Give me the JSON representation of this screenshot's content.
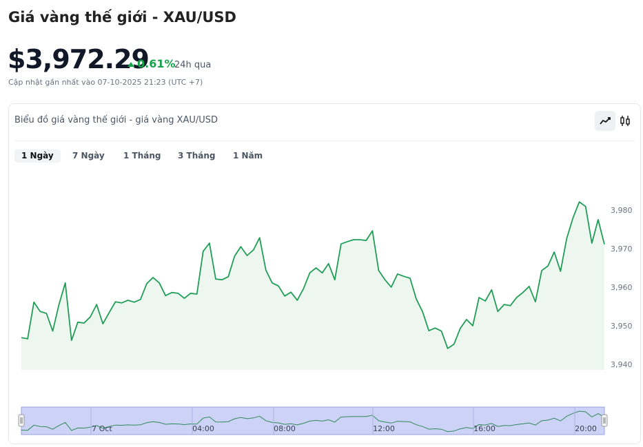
{
  "title": "Giá vàng thế giới - XAU/USD",
  "price": "$3,972.29",
  "change": "0.61%",
  "change_period": "24h qua",
  "updated": "Cập nhật gần nhất vào 07-10-2025 21:23 (UTC +7)",
  "card_title": "Biểu đồ giá vàng thế giới - giá vàng XAU/USD",
  "ranges": [
    "1 Ngày",
    "7 Ngày",
    "1 Tháng",
    "3 Tháng",
    "1 Năm"
  ],
  "chart_data": {
    "type": "area",
    "color": "#1f9d55",
    "values": [
      3947.1,
      3946.8,
      3956.3,
      3953.9,
      3953.4,
      3948.8,
      3955.7,
      3961.3,
      3946.4,
      3951.1,
      3950.9,
      3952.5,
      3955.7,
      3950.7,
      3953.6,
      3956.4,
      3956.1,
      3956.8,
      3956.3,
      3957.0,
      3961.1,
      3962.7,
      3961.3,
      3958.0,
      3958.8,
      3958.6,
      3957.3,
      3958.6,
      3958.4,
      3969.5,
      3971.6,
      3962.3,
      3962.1,
      3962.9,
      3968.2,
      3970.7,
      3968.4,
      3969.8,
      3973.0,
      3964.6,
      3961.3,
      3960.5,
      3957.9,
      3958.9,
      3956.8,
      3959.8,
      3963.9,
      3965.2,
      3963.9,
      3966.3,
      3962.1,
      3971.4,
      3972.0,
      3972.5,
      3972.5,
      3972.3,
      3974.8,
      3964.5,
      3962.1,
      3960.2,
      3963.6,
      3963.0,
      3962.5,
      3957.1,
      3953.8,
      3948.9,
      3949.6,
      3948.8,
      3944.3,
      3945.4,
      3949.5,
      3951.8,
      3950.2,
      3957.5,
      3956.6,
      3959.5,
      3953.9,
      3955.7,
      3955.4,
      3957.5,
      3958.8,
      3960.4,
      3956.4,
      3964.5,
      3965.7,
      3969.3,
      3964.3,
      3972.9,
      3978.2,
      3982.3,
      3981.1,
      3971.6,
      3977.7,
      3971.3
    ],
    "ylim": [
      3938.75,
      3990
    ],
    "yticks": [
      {
        "value": 3940,
        "label": "3,940"
      },
      {
        "value": 3950,
        "label": "3,950"
      },
      {
        "value": 3960,
        "label": "3,960"
      },
      {
        "value": 3970,
        "label": "3,970"
      },
      {
        "value": 3980,
        "label": "3,980"
      }
    ],
    "navigator_labels": [
      "7 Oct",
      "04:00",
      "08:00",
      "12:00",
      "16:00",
      "20:00"
    ]
  }
}
